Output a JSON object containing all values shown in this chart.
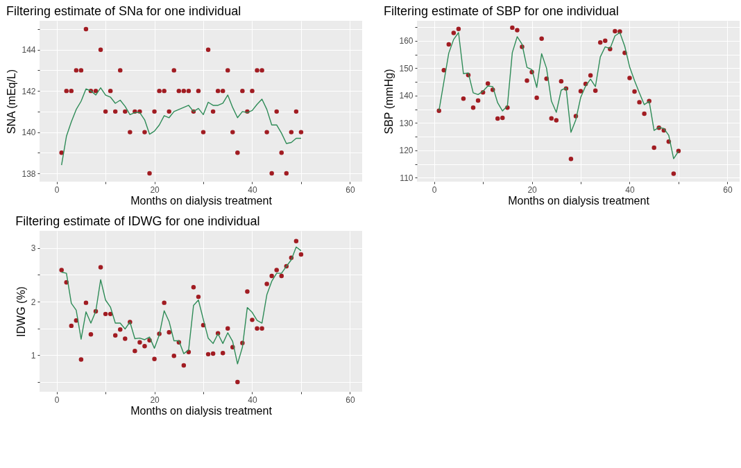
{
  "chart_data": [
    {
      "type": "scatter",
      "title": "Filtering estimate of SNa for one individual",
      "xlabel": "Months on dialysis treatment",
      "ylabel": "SNA (mEq/L)",
      "grid": true,
      "x": [
        1,
        2,
        3,
        4,
        5,
        6,
        7,
        8,
        9,
        10,
        11,
        12,
        13,
        14,
        15,
        16,
        17,
        18,
        19,
        20,
        21,
        22,
        23,
        24,
        25,
        26,
        27,
        28,
        29,
        30,
        31,
        32,
        33,
        34,
        35,
        36,
        37,
        38,
        39,
        40,
        41,
        42,
        43,
        44,
        45,
        46,
        47,
        48,
        49,
        50
      ],
      "xlim": [
        -3.5,
        62.5
      ],
      "xticks": [
        0,
        {
          "value": 10,
          "label": null
        },
        20,
        {
          "value": 30,
          "label": null
        },
        40,
        {
          "value": 50,
          "label": null
        },
        60
      ],
      "ylim": [
        137.6,
        145.4
      ],
      "yticks": [
        138,
        {
          "value": 139,
          "label": null
        },
        140,
        {
          "value": 141,
          "label": null
        },
        142,
        {
          "value": 143,
          "label": null
        },
        144,
        {
          "value": 145,
          "label": null
        }
      ],
      "series": [
        {
          "type": "scatter",
          "color": "#a11c22",
          "values": [
            139,
            142,
            142,
            143,
            143,
            145,
            142,
            142,
            144,
            141,
            142,
            141,
            143,
            141,
            140,
            141,
            141,
            140,
            138,
            141,
            142,
            142,
            141,
            143,
            142,
            142,
            142,
            141,
            142,
            140,
            144,
            141,
            142,
            142,
            143,
            140,
            139,
            142,
            141,
            142,
            143,
            143,
            140,
            138,
            141,
            139,
            138,
            140,
            141,
            140
          ]
        },
        {
          "type": "line",
          "color": "#2e8b57",
          "values": [
            138.4,
            139.8,
            140.5,
            141.1,
            141.5,
            142.1,
            142.0,
            141.8,
            142.15,
            141.8,
            141.7,
            141.4,
            141.55,
            141.25,
            140.85,
            140.95,
            140.95,
            140.6,
            139.9,
            140.05,
            140.35,
            140.8,
            140.7,
            141.0,
            141.1,
            141.2,
            141.3,
            141.0,
            141.15,
            140.85,
            141.45,
            141.3,
            141.3,
            141.4,
            141.8,
            141.2,
            140.7,
            141.0,
            140.95,
            141.05,
            141.35,
            141.6,
            141.1,
            140.35,
            140.35,
            139.95,
            139.45,
            139.5,
            139.7,
            139.7
          ]
        }
      ]
    },
    {
      "type": "scatter",
      "title": "Filtering estimate of SBP for one individual",
      "xlabel": "Months on dialysis treatment",
      "ylabel": "SBP (mmHg)",
      "grid": true,
      "x": [
        1,
        2,
        3,
        4,
        5,
        6,
        7,
        8,
        9,
        10,
        11,
        12,
        13,
        14,
        15,
        16,
        17,
        18,
        19,
        20,
        21,
        22,
        23,
        24,
        25,
        26,
        27,
        28,
        29,
        30,
        31,
        32,
        33,
        34,
        35,
        36,
        37,
        38,
        39,
        40,
        41,
        42,
        43,
        44,
        45,
        46,
        47,
        48,
        49,
        50
      ],
      "xlim": [
        -3.5,
        62.5
      ],
      "xticks": [
        0,
        {
          "value": 10,
          "label": null
        },
        20,
        {
          "value": 30,
          "label": null
        },
        40,
        {
          "value": 50,
          "label": null
        },
        60
      ],
      "ylim": [
        108.6,
        167.3
      ],
      "yticks": [
        110,
        {
          "value": 115,
          "label": null
        },
        120,
        {
          "value": 125,
          "label": null
        },
        130,
        {
          "value": 135,
          "label": null
        },
        140,
        {
          "value": 145,
          "label": null
        },
        150,
        {
          "value": 155,
          "label": null
        },
        160,
        {
          "value": 165,
          "label": null
        }
      ],
      "series": [
        {
          "type": "scatter",
          "color": "#a11c22",
          "values": [
            134.5,
            149.3,
            158.7,
            162.9,
            164.3,
            138.9,
            147.5,
            135.6,
            138.2,
            141.2,
            144.4,
            142.1,
            131.6,
            131.9,
            135.6,
            164.8,
            163.9,
            157.8,
            145.5,
            148.6,
            139.2,
            160.8,
            146.2,
            131.7,
            131.0,
            145.2,
            142.6,
            116.9,
            132.5,
            141.6,
            144.3,
            147.4,
            141.8,
            159.4,
            160.0,
            157.0,
            163.5,
            163.4,
            155.6,
            146.4,
            141.5,
            137.6,
            133.4,
            138.0,
            121.0,
            128.3,
            127.3,
            123.2,
            111.5,
            119.8
          ]
        },
        {
          "type": "line",
          "color": "#2e8b57",
          "values": [
            134.5,
            145,
            155.5,
            160.5,
            163,
            148,
            148.3,
            141,
            140.4,
            141.6,
            143.5,
            143.3,
            137.4,
            134.4,
            136.3,
            155.7,
            161.5,
            158.7,
            150.3,
            149.5,
            143,
            155.3,
            150,
            138,
            133.9,
            142,
            142.8,
            126.6,
            131.2,
            139.4,
            143.5,
            146,
            143.3,
            154.1,
            157.8,
            157.2,
            161.8,
            163,
            158,
            150.5,
            145.5,
            141,
            136.7,
            137.9,
            127.3,
            128.4,
            128,
            125.5,
            117,
            119.7
          ]
        }
      ]
    },
    {
      "type": "scatter",
      "title": "Filtering estimate of IDWG for one individual",
      "xlabel": "Months on dialysis treatment",
      "ylabel": "IDWG (%)",
      "grid": true,
      "x": [
        1,
        2,
        3,
        4,
        5,
        6,
        7,
        8,
        9,
        10,
        11,
        12,
        13,
        14,
        15,
        16,
        17,
        18,
        19,
        20,
        21,
        22,
        23,
        24,
        25,
        26,
        27,
        28,
        29,
        30,
        31,
        32,
        33,
        34,
        35,
        36,
        37,
        38,
        39,
        40,
        41,
        42,
        43,
        44,
        45,
        46,
        47,
        48,
        49,
        50
      ],
      "xlim": [
        -3.5,
        62.5
      ],
      "xticks": [
        0,
        {
          "value": 10,
          "label": null
        },
        20,
        {
          "value": 30,
          "label": null
        },
        40,
        {
          "value": 50,
          "label": null
        },
        60
      ],
      "ylim": [
        0.32,
        3.32
      ],
      "yticks": [
        {
          "value": 0.5,
          "label": null
        },
        1,
        {
          "value": 1.5,
          "label": null
        },
        2,
        {
          "value": 2.5,
          "label": null
        },
        3
      ],
      "series": [
        {
          "type": "scatter",
          "color": "#a11c22",
          "values": [
            2.59,
            2.36,
            1.55,
            1.65,
            0.92,
            1.98,
            1.39,
            1.82,
            2.64,
            1.77,
            1.77,
            1.37,
            1.48,
            1.31,
            1.62,
            1.08,
            1.24,
            1.17,
            1.28,
            0.93,
            1.4,
            1.98,
            1.43,
            0.99,
            1.24,
            0.81,
            1.06,
            2.27,
            2.09,
            1.56,
            1.02,
            1.03,
            1.41,
            1.04,
            1.5,
            1.15,
            0.5,
            1.23,
            2.19,
            1.66,
            1.5,
            1.5,
            2.33,
            2.48,
            2.59,
            2.48,
            2.66,
            2.82,
            3.13,
            2.88
          ]
        },
        {
          "type": "line",
          "color": "#2e8b57",
          "values": [
            2.55,
            2.53,
            1.97,
            1.84,
            1.3,
            1.81,
            1.6,
            1.82,
            2.41,
            2.03,
            1.9,
            1.6,
            1.6,
            1.49,
            1.62,
            1.31,
            1.32,
            1.29,
            1.34,
            1.13,
            1.38,
            1.83,
            1.63,
            1.27,
            1.27,
            1.03,
            1.1,
            1.93,
            2.03,
            1.67,
            1.32,
            1.22,
            1.4,
            1.22,
            1.42,
            1.26,
            0.84,
            1.15,
            1.89,
            1.8,
            1.65,
            1.6,
            2.13,
            2.38,
            2.53,
            2.53,
            2.66,
            2.78,
            3.02,
            2.95
          ]
        }
      ]
    }
  ]
}
